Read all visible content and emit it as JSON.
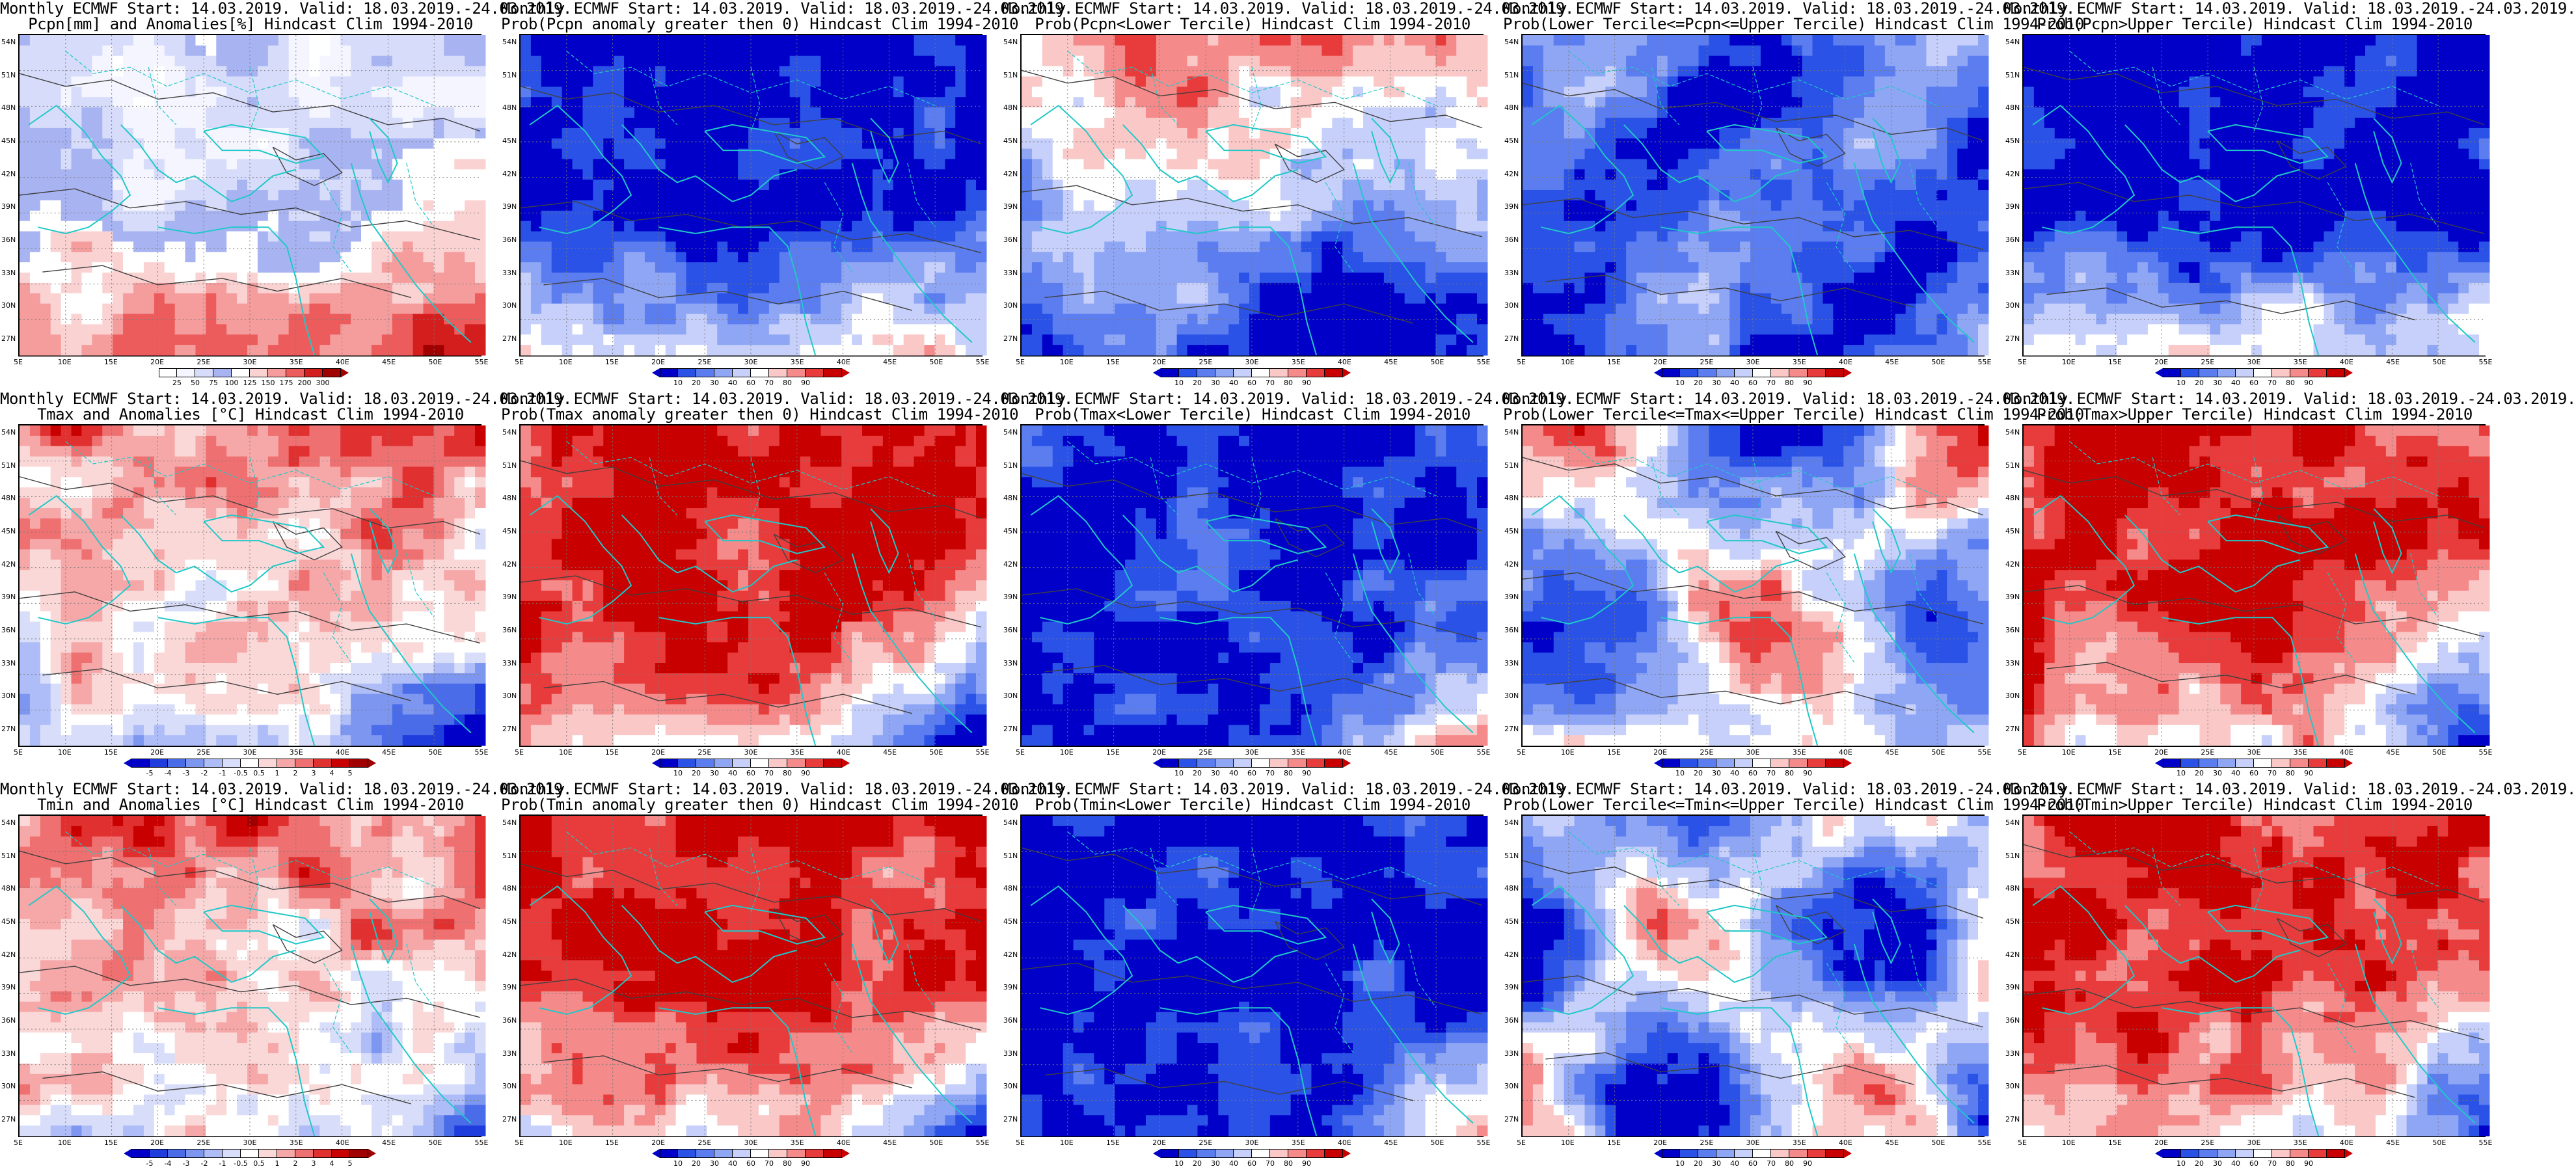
{
  "rows": [
    {
      "panels": [
        {
          "title1": "Monthly ECMWF Start: 14.03.2019. Valid: 18.03.2019.-24.03.2019.",
          "title2": "Pcpn[mm] and Anomalies[%] Hindcast Clim 1994-2010",
          "scale": "anom_pcpn",
          "field": "pcpn_anom"
        },
        {
          "title1": "Monthly ECMWF Start: 14.03.2019. Valid: 18.03.2019.-24.03.2019.",
          "title2": "Prob(Pcpn anomaly greater then 0) Hindcast Clim 1994-2010",
          "scale": "prob",
          "field": "pcpn_pos"
        },
        {
          "title1": "Monthly ECMWF Start: 14.03.2019. Valid: 18.03.2019.-24.03.2019.",
          "title2": "Prob(Pcpn<Lower Tercile) Hindcast Clim 1994-2010",
          "scale": "prob",
          "field": "pcpn_low"
        },
        {
          "title1": "Monthly ECMWF Start: 14.03.2019. Valid: 18.03.2019.-24.03.2019.",
          "title2": "Prob(Lower Tercile<=Pcpn<=Upper Tercile) Hindcast Clim 1994-2010",
          "scale": "prob",
          "field": "pcpn_mid"
        },
        {
          "title1": "Monthly ECMWF Start: 14.03.2019. Valid: 18.03.2019.-24.03.2019.",
          "title2": "Prob(Pcpn>Upper Tercile) Hindcast Clim 1994-2010",
          "scale": "prob",
          "field": "pcpn_pos"
        }
      ]
    },
    {
      "panels": [
        {
          "title1": "Monthly ECMWF Start: 14.03.2019. Valid: 18.03.2019.-24.03.2019.",
          "title2": "Tmax and Anomalies [°C] Hindcast Clim 1994-2010",
          "scale": "anom_temp",
          "field": "tmax_anom"
        },
        {
          "title1": "Monthly ECMWF Start: 14.03.2019. Valid: 18.03.2019.-24.03.2019.",
          "title2": "Prob(Tmax anomaly greater then 0) Hindcast Clim 1994-2010",
          "scale": "prob",
          "field": "tmax_pos"
        },
        {
          "title1": "Monthly ECMWF Start: 14.03.2019. Valid: 18.03.2019.-24.03.2019.",
          "title2": "Prob(Tmax<Lower Tercile) Hindcast Clim 1994-2010",
          "scale": "prob",
          "field": "tmax_low"
        },
        {
          "title1": "Monthly ECMWF Start: 14.03.2019. Valid: 18.03.2019.-24.03.2019.",
          "title2": "Prob(Lower Tercile<=Tmax<=Upper Tercile) Hindcast Clim 1994-2010",
          "scale": "prob",
          "field": "tmax_mid"
        },
        {
          "title1": "Monthly ECMWF Start: 14.03.2019. Valid: 18.03.2019.-24.03.2019.",
          "title2": "Prob(Tmax>Upper Tercile) Hindcast Clim 1994-2010",
          "scale": "prob",
          "field": "tmax_pos"
        }
      ]
    },
    {
      "panels": [
        {
          "title1": "Monthly ECMWF Start: 14.03.2019. Valid: 18.03.2019.-24.03.2019.",
          "title2": "Tmin and Anomalies [°C] Hindcast Clim 1994-2010",
          "scale": "anom_temp",
          "field": "tmin_anom"
        },
        {
          "title1": "Monthly ECMWF Start: 14.03.2019. Valid: 18.03.2019.-24.03.2019.",
          "title2": "Prob(Tmin anomaly greater then 0) Hindcast Clim 1994-2010",
          "scale": "prob",
          "field": "tmin_pos"
        },
        {
          "title1": "Monthly ECMWF Start: 14.03.2019. Valid: 18.03.2019.-24.03.2019.",
          "title2": "Prob(Tmin<Lower Tercile) Hindcast Clim 1994-2010",
          "scale": "prob",
          "field": "tmin_low"
        },
        {
          "title1": "Monthly ECMWF Start: 14.03.2019. Valid: 18.03.2019.-24.03.2019.",
          "title2": "Prob(Lower Tercile<=Tmin<=Upper Tercile) Hindcast Clim 1994-2010",
          "scale": "prob",
          "field": "tmin_mid"
        },
        {
          "title1": "Monthly ECMWF Start: 14.03.2019. Valid: 18.03.2019.-24.03.2019.",
          "title2": "Prob(Tmin>Upper Tercile) Hindcast Clim 1994-2010",
          "scale": "prob",
          "field": "tmin_pos"
        }
      ]
    }
  ],
  "axes": {
    "lat_labels": [
      "54N",
      "51N",
      "48N",
      "45N",
      "42N",
      "39N",
      "36N",
      "33N",
      "30N",
      "27N"
    ],
    "lon_labels": [
      "5E",
      "10E",
      "15E",
      "20E",
      "25E",
      "30E",
      "35E",
      "40E",
      "45E",
      "50E",
      "55E"
    ]
  },
  "scales": {
    "prob": {
      "ticks": [
        "10",
        "20",
        "30",
        "40",
        "60",
        "70",
        "80",
        "90"
      ],
      "colors": [
        "#0000c8",
        "#2a52e6",
        "#5b7df0",
        "#8fa6f5",
        "#c6d0fa",
        "#ffffff",
        "#fbc8c8",
        "#f58a8a",
        "#e83c3c",
        "#c80000"
      ]
    },
    "anom_pcpn": {
      "ticks": [
        "25",
        "50",
        "75",
        "100",
        "125",
        "150",
        "175",
        "200",
        "300"
      ],
      "colors": [
        "#ffffff",
        "#f5f5ff",
        "#d6dcfa",
        "#a8b4f2",
        "#ffffff",
        "#fbd2d2",
        "#f59c9c",
        "#ec5c5c",
        "#d41e1e",
        "#a00000"
      ]
    },
    "anom_temp": {
      "ticks": [
        "-5",
        "-4",
        "-3",
        "-2",
        "-1",
        "-0.5",
        "0.5",
        "1",
        "2",
        "3",
        "4",
        "5"
      ],
      "colors": [
        "#0000c8",
        "#1f3ddc",
        "#4a6ce8",
        "#7d96f0",
        "#aebdf7",
        "#d8def9",
        "#ffffff",
        "#fbd8d8",
        "#f6a8a8",
        "#ee7070",
        "#e03030",
        "#c80000",
        "#a00000"
      ]
    }
  },
  "colors": {
    "coast": "#20c8c8",
    "contour": "#404040",
    "gridline": "#7a7a7a"
  }
}
